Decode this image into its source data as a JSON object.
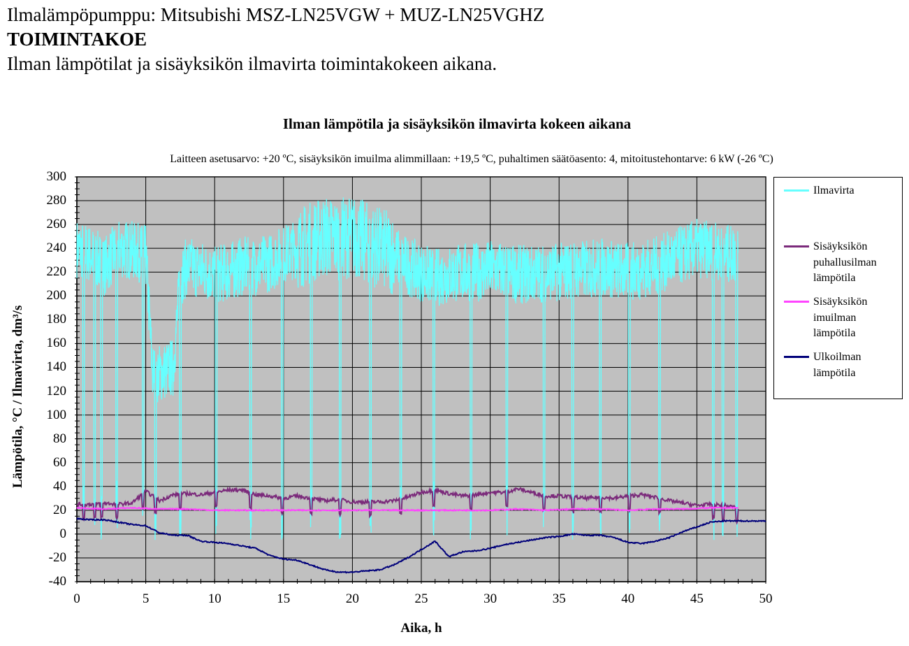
{
  "header": {
    "line1": "Ilmalämpöpumppu: Mitsubishi MSZ-LN25VGW + MUZ-LN25VGHZ",
    "line2": "TOIMINTAKOE",
    "line3": "Ilman lämpötilat ja sisäyksikön ilmavirta toimintakokeen aikana."
  },
  "chart_data": {
    "type": "line",
    "title": "Ilman lämpötila  ja sisäyksikön  ilmavirta  kokeen aikana",
    "subtitle": "Laitteen  asetusarvo: +20 ºC, sisäyksikön  imuilma  alimmillaan:  +19,5 ºC, puhaltimen  säätöasento: 4, mitoitustehontarve:  6 kW (-26 ºC)",
    "xlabel": "Aika, h",
    "ylabel": "Lämpötila,  °C / Ilmavirta,  dm³/s",
    "xlim": [
      0,
      50
    ],
    "ylim": [
      -40,
      300
    ],
    "xticks": [
      "0",
      "5",
      "10",
      "15",
      "20",
      "25",
      "30",
      "35",
      "40",
      "45",
      "50"
    ],
    "yticks": [
      "300",
      "280",
      "260",
      "240",
      "220",
      "200",
      "180",
      "160",
      "140",
      "120",
      "100",
      "80",
      "60",
      "40",
      "20",
      "0",
      "-20",
      "-40"
    ],
    "grid": true,
    "plot_background": "#c0c0c0",
    "legend_position": "right",
    "series": [
      {
        "name": "Ilmavirta",
        "color": "#66ffff",
        "x": [
          0,
          1,
          2,
          3,
          4,
          5,
          5.5,
          6,
          7,
          7.5,
          8,
          9,
          10,
          11,
          12,
          13,
          14,
          15,
          16,
          17,
          18,
          19,
          20,
          21,
          22,
          23,
          24,
          25,
          26,
          27,
          28,
          29,
          30,
          31,
          32,
          33,
          34,
          35,
          36,
          37,
          38,
          39,
          40,
          41,
          42,
          43,
          44,
          45,
          46,
          47,
          48
        ],
        "values": [
          240,
          235,
          225,
          240,
          238,
          235,
          135,
          135,
          140,
          215,
          225,
          222,
          218,
          220,
          225,
          225,
          228,
          235,
          240,
          245,
          250,
          248,
          250,
          245,
          240,
          235,
          225,
          220,
          215,
          218,
          220,
          220,
          222,
          222,
          218,
          218,
          220,
          220,
          222,
          222,
          225,
          222,
          220,
          222,
          225,
          230,
          235,
          240,
          238,
          235,
          235
        ],
        "defrost_dips_x": [
          0.5,
          1.3,
          1.8,
          2.9,
          4.8,
          5.7,
          7.5,
          10.1,
          12.6,
          14.9,
          17.0,
          19.1,
          21.3,
          23.5,
          25.9,
          28.6,
          31.2,
          33.9,
          36.0,
          38.0,
          40.1,
          42.3,
          46.2,
          46.9,
          47.9
        ],
        "dip_min": -5
      },
      {
        "name": "Sisäyksikön puhallusilman lämpötila",
        "color": "#7b2a7b",
        "x": [
          0,
          1,
          2,
          3,
          4,
          5,
          6,
          7,
          8,
          9,
          10,
          11,
          12,
          13,
          14,
          15,
          16,
          17,
          18,
          19,
          20,
          21,
          22,
          23,
          24,
          25,
          26,
          27,
          28,
          29,
          30,
          31,
          32,
          33,
          34,
          35,
          36,
          37,
          38,
          39,
          40,
          41,
          42,
          43,
          44,
          45,
          46,
          47,
          48
        ],
        "values": [
          25,
          25,
          26,
          25,
          26,
          36,
          28,
          33,
          34,
          33,
          35,
          37,
          37,
          33,
          32,
          30,
          32,
          30,
          28,
          29,
          27,
          27,
          27,
          28,
          31,
          35,
          37,
          34,
          32,
          33,
          35,
          35,
          38,
          35,
          32,
          32,
          31,
          30,
          31,
          30,
          32,
          33,
          31,
          28,
          26,
          24,
          25,
          24,
          22
        ]
      },
      {
        "name": "Sisäyksikön imuilman lämpötila",
        "color": "#ff44ff",
        "x": [
          0,
          2,
          4,
          6,
          8,
          10,
          12,
          14,
          16,
          18,
          20,
          22,
          24,
          26,
          28,
          30,
          32,
          34,
          36,
          38,
          40,
          42,
          44,
          46,
          48
        ],
        "values": [
          22,
          21,
          22,
          21,
          21,
          20,
          20,
          20,
          20,
          20,
          20,
          20,
          20,
          20,
          20,
          20,
          21,
          20,
          21,
          21,
          20,
          21,
          21,
          22,
          22
        ]
      },
      {
        "name": "Ulkoilman lämpötila",
        "color": "#00007a",
        "x": [
          0,
          1,
          2,
          3,
          4,
          5,
          6,
          7,
          8,
          9,
          10,
          11,
          12,
          13,
          14,
          15,
          16,
          17,
          18,
          19,
          20,
          21,
          22,
          23,
          24,
          25,
          26,
          27,
          28,
          29,
          30,
          31,
          32,
          33,
          34,
          35,
          36,
          37,
          38,
          39,
          40,
          41,
          42,
          43,
          44,
          45,
          46,
          47,
          48,
          49,
          50
        ],
        "values": [
          13,
          12,
          12,
          10,
          8,
          7,
          1,
          -1,
          -1,
          -6,
          -7,
          -8,
          -10,
          -12,
          -18,
          -21,
          -22,
          -26,
          -30,
          -32,
          -32,
          -31,
          -30,
          -26,
          -20,
          -13,
          -6,
          -19,
          -15,
          -14,
          -12,
          -9,
          -7,
          -5,
          -3,
          -2,
          0,
          -1,
          -1,
          -3,
          -7,
          -8,
          -6,
          -3,
          2,
          6,
          10,
          11,
          11,
          11,
          11
        ]
      }
    ]
  },
  "legend": {
    "items": [
      {
        "label": "Ilmavirta",
        "color": "#66ffff"
      },
      {
        "label": "Sisäyksikön puhallusilman lämpötila",
        "color": "#7b2a7b"
      },
      {
        "label": "Sisäyksikön imuilman lämpötila",
        "color": "#ff44ff"
      },
      {
        "label": "Ulkoilman lämpötila",
        "color": "#00007a"
      }
    ]
  }
}
